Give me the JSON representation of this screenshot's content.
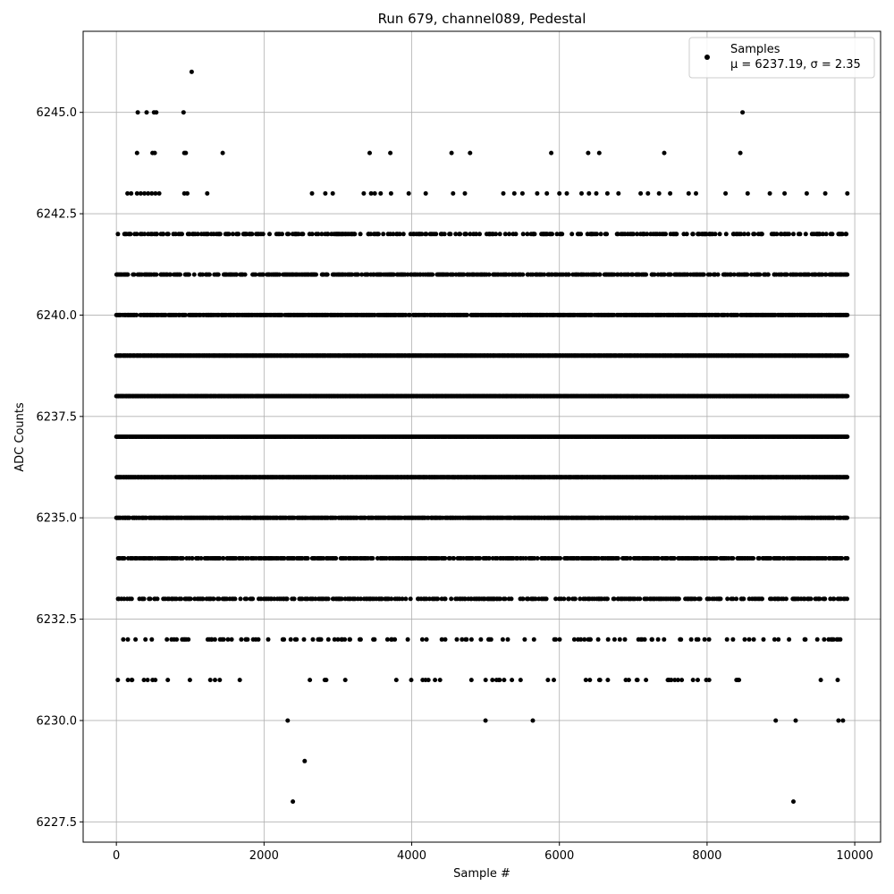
{
  "chart_data": {
    "type": "scatter",
    "title": "Run 679, channel089, Pedestal",
    "xlabel": "Sample #",
    "ylabel": "ADC Counts",
    "xlim": [
      -450,
      10350
    ],
    "ylim": [
      6227.0,
      6247.0
    ],
    "xticks": [
      0,
      2000,
      4000,
      6000,
      8000,
      10000
    ],
    "xtick_labels": [
      "0",
      "2000",
      "4000",
      "6000",
      "8000",
      "10000"
    ],
    "yticks": [
      6227.5,
      6230.0,
      6232.5,
      6235.0,
      6237.5,
      6240.0,
      6242.5,
      6245.0
    ],
    "ytick_labels": [
      "6227.5",
      "6230.0",
      "6232.5",
      "6235.0",
      "6237.5",
      "6240.0",
      "6242.5",
      "6245.0"
    ],
    "grid": true,
    "legend_position": "top-right",
    "legend": {
      "label": "Samples",
      "stats": "μ = 6237.19, σ = 2.35"
    },
    "series": [
      {
        "name": "Samples",
        "color": "#000000",
        "x_range": [
          0,
          9900
        ],
        "levels": [
          {
            "y": 6246,
            "x": [
              1020
            ]
          },
          {
            "y": 6245,
            "x": [
              290,
              410,
              510,
              540,
              910,
              8480
            ]
          },
          {
            "y": 6244,
            "x": [
              280,
              490,
              520,
              920,
              940,
              1440,
              3430,
              3710,
              4540,
              4790,
              5890,
              6390,
              6540,
              7420,
              8450
            ]
          },
          {
            "y": 6243,
            "x": [
              150,
              200,
              280,
              330,
              380,
              430,
              480,
              530,
              580,
              920,
              960,
              1230,
              2650,
              2830,
              2930,
              3350,
              3450,
              3500,
              3580,
              3720,
              3960,
              4190,
              4560,
              4720,
              5240,
              5390,
              5500,
              5700,
              5830,
              6000,
              6100,
              6300,
              6400,
              6500,
              6650,
              6800,
              7100,
              7200,
              7350,
              7500,
              7750,
              7850,
              8250,
              8550,
              8850,
              9050,
              9350,
              9600,
              9900
            ]
          },
          {
            "y": 6230,
            "x": [
              2320,
              5000,
              5640,
              8930,
              9200,
              9780,
              9840
            ]
          },
          {
            "y": 6229,
            "x": [
              2550
            ]
          },
          {
            "y": 6228,
            "x": [
              2390,
              9170
            ]
          }
        ],
        "dense_levels": [
          {
            "y": 6242,
            "density": 0.35
          },
          {
            "y": 6241,
            "density": 0.55
          },
          {
            "y": 6240,
            "density": 0.85
          },
          {
            "y": 6239,
            "density": 1.0
          },
          {
            "y": 6238,
            "density": 1.0
          },
          {
            "y": 6237,
            "density": 1.0
          },
          {
            "y": 6236,
            "density": 1.0
          },
          {
            "y": 6235,
            "density": 0.9
          },
          {
            "y": 6234,
            "density": 0.6
          },
          {
            "y": 6233,
            "density": 0.4
          },
          {
            "y": 6232,
            "density": 0.18
          },
          {
            "y": 6231,
            "density": 0.06
          }
        ]
      }
    ]
  }
}
